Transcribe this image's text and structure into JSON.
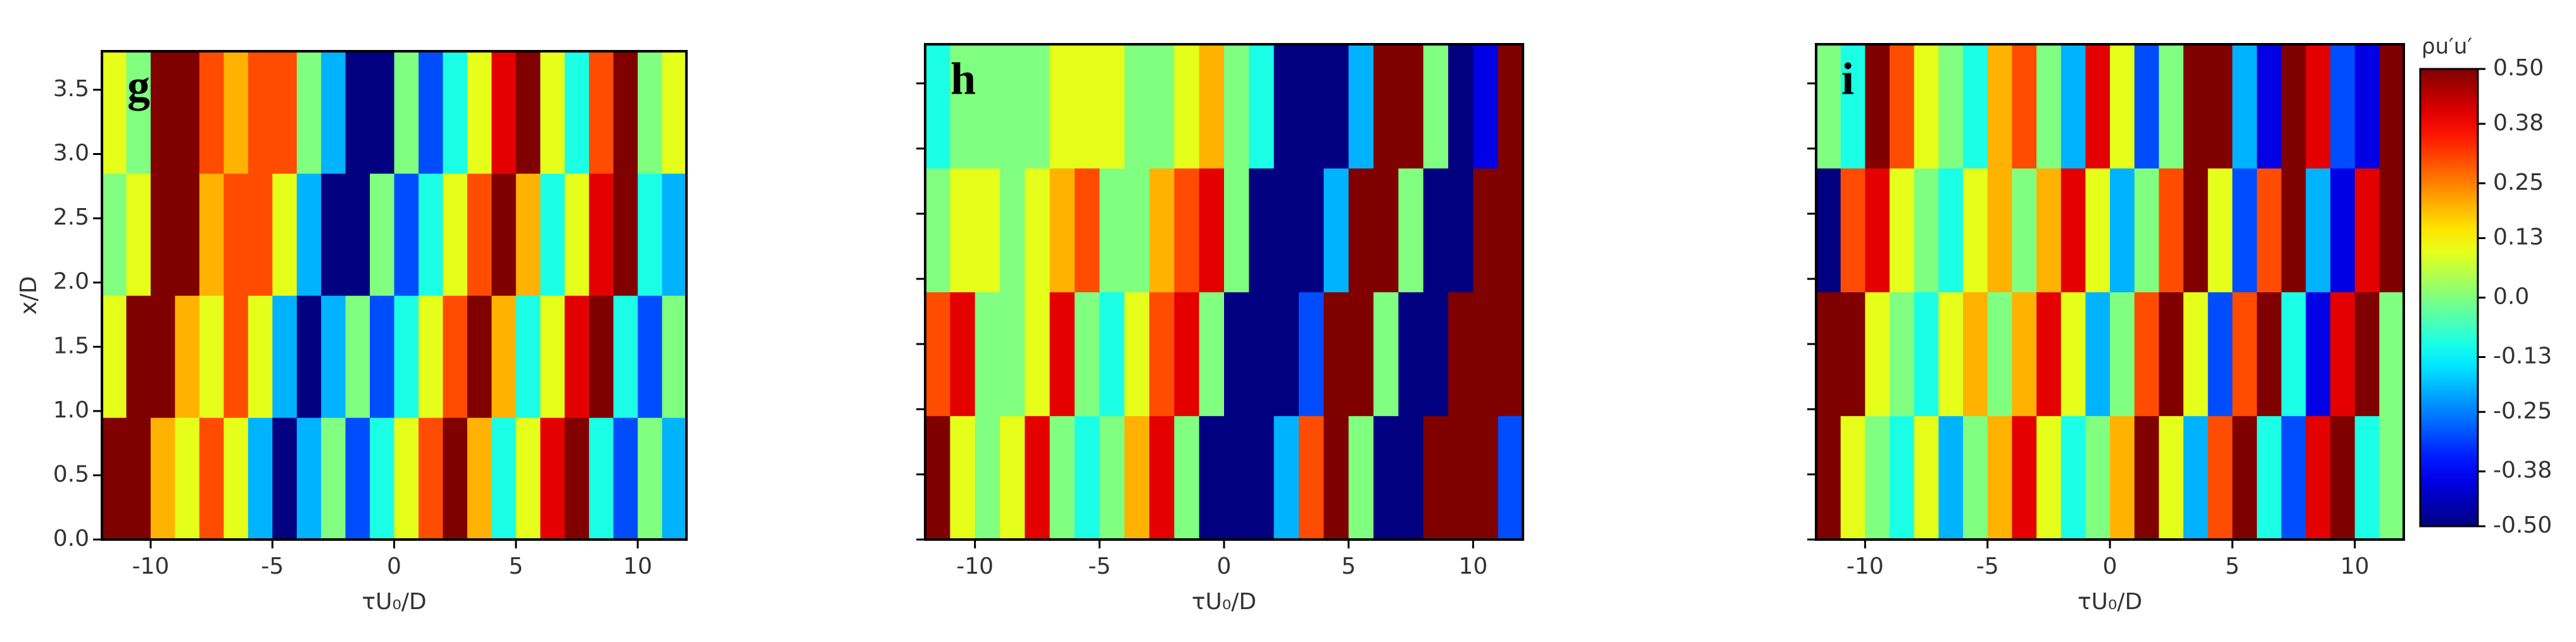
{
  "chart_data": [
    {
      "type": "heatmap",
      "panel_label": "g",
      "xlabel": "τU₀/D",
      "ylabel": "x/D",
      "x": [
        -11.5,
        -10.5,
        -9.5,
        -8.5,
        -7.5,
        -6.5,
        -5.5,
        -4.5,
        -3.5,
        -2.5,
        -1.5,
        -0.5,
        0.5,
        1.5,
        2.5,
        3.5,
        4.5,
        5.5,
        6.5,
        7.5,
        8.5,
        9.5,
        10.5,
        11.5
      ],
      "y": [
        0.475,
        1.425,
        2.375,
        3.325
      ],
      "z": [
        [
          0.5,
          0.5,
          0.2,
          0.1,
          0.3,
          0.1,
          -0.2,
          -0.5,
          -0.2,
          0.0,
          -0.3,
          -0.1,
          0.1,
          0.3,
          0.5,
          0.2,
          -0.1,
          0.1,
          0.4,
          0.5,
          -0.1,
          -0.3,
          0.0,
          -0.2
        ],
        [
          0.1,
          0.5,
          0.5,
          0.2,
          0.1,
          0.3,
          0.1,
          -0.2,
          -0.5,
          -0.2,
          0.0,
          -0.3,
          -0.1,
          0.1,
          0.3,
          0.5,
          0.2,
          -0.1,
          0.1,
          0.4,
          0.5,
          -0.1,
          -0.3,
          0.0
        ],
        [
          0.0,
          0.1,
          0.5,
          0.5,
          0.2,
          0.3,
          0.3,
          0.1,
          -0.2,
          -0.5,
          -0.5,
          0.0,
          -0.3,
          -0.1,
          0.1,
          0.3,
          0.5,
          0.2,
          -0.1,
          0.1,
          0.4,
          0.5,
          -0.1,
          -0.2
        ],
        [
          0.1,
          0.0,
          0.5,
          0.5,
          0.3,
          0.2,
          0.3,
          0.3,
          0.0,
          -0.2,
          -0.5,
          -0.5,
          0.0,
          -0.3,
          -0.1,
          0.1,
          0.4,
          0.5,
          0.1,
          -0.1,
          0.3,
          0.5,
          0.0,
          0.1
        ]
      ],
      "xlim": [
        -12,
        12
      ],
      "xticks": [
        -10,
        -5,
        0,
        5,
        10
      ],
      "ylim": [
        0,
        3.8
      ],
      "yticks": [
        {
          "value": 0,
          "label": "0.0"
        },
        0.5,
        {
          "value": 1,
          "label": "1.0"
        },
        1.5,
        {
          "value": 2,
          "label": "2.0"
        },
        2.5,
        {
          "value": 3,
          "label": "3.0"
        },
        3.5
      ],
      "show_ytick_labels": true
    },
    {
      "type": "heatmap",
      "panel_label": "h",
      "xlabel": "τU₀/D",
      "x": [
        -11.5,
        -10.5,
        -9.5,
        -8.5,
        -7.5,
        -6.5,
        -5.5,
        -4.5,
        -3.5,
        -2.5,
        -1.5,
        -0.5,
        0.5,
        1.5,
        2.5,
        3.5,
        4.5,
        5.5,
        6.5,
        7.5,
        8.5,
        9.5,
        10.5,
        11.5
      ],
      "y": [
        0.475,
        1.425,
        2.375,
        3.325
      ],
      "z": [
        [
          0.5,
          0.1,
          0.0,
          0.1,
          0.4,
          0.0,
          -0.1,
          0.0,
          0.2,
          0.4,
          0.0,
          -0.5,
          -0.5,
          -0.5,
          -0.2,
          0.3,
          0.5,
          0.0,
          -0.5,
          -0.5,
          0.5,
          0.5,
          0.5,
          -0.3
        ],
        [
          0.3,
          0.4,
          0.0,
          0.0,
          0.1,
          0.4,
          0.0,
          -0.1,
          0.1,
          0.3,
          0.4,
          0.0,
          -0.5,
          -0.5,
          -0.5,
          -0.3,
          0.5,
          0.5,
          0.0,
          -0.5,
          -0.5,
          0.5,
          0.5,
          0.5
        ],
        [
          0.0,
          0.1,
          0.1,
          0.0,
          0.1,
          0.2,
          0.3,
          0.0,
          0.0,
          0.2,
          0.3,
          0.4,
          0.0,
          -0.5,
          -0.5,
          -0.5,
          -0.2,
          0.5,
          0.5,
          0.0,
          -0.5,
          -0.5,
          0.5,
          0.5
        ],
        [
          -0.1,
          0.0,
          0.0,
          0.0,
          0.0,
          0.1,
          0.1,
          0.1,
          0.0,
          0.0,
          0.1,
          0.2,
          0.0,
          -0.1,
          -0.5,
          -0.5,
          -0.5,
          -0.2,
          0.5,
          0.5,
          0.0,
          -0.5,
          -0.4,
          0.5
        ]
      ],
      "xlim": [
        -12,
        12
      ],
      "xticks": [
        -10,
        -5,
        0,
        5,
        10
      ],
      "ylim": [
        0,
        3.8
      ],
      "yticks": [
        0,
        0.5,
        1,
        1.5,
        2,
        2.5,
        3,
        3.5
      ],
      "show_ytick_labels": false
    },
    {
      "type": "heatmap",
      "panel_label": "i",
      "xlabel": "τU₀/D",
      "x": [
        -11.5,
        -10.5,
        -9.5,
        -8.5,
        -7.5,
        -6.5,
        -5.5,
        -4.5,
        -3.5,
        -2.5,
        -1.5,
        -0.5,
        0.5,
        1.5,
        2.5,
        3.5,
        4.5,
        5.5,
        6.5,
        7.5,
        8.5,
        9.5,
        10.5,
        11.5
      ],
      "y": [
        0.475,
        1.425,
        2.375,
        3.325
      ],
      "z": [
        [
          0.5,
          0.1,
          0.0,
          -0.1,
          0.1,
          -0.2,
          0.0,
          0.2,
          0.4,
          0.1,
          -0.1,
          0.0,
          0.2,
          0.5,
          0.1,
          -0.2,
          0.3,
          0.5,
          -0.1,
          -0.3,
          0.4,
          0.5,
          -0.1,
          0.0
        ],
        [
          0.5,
          0.5,
          0.1,
          0.0,
          -0.1,
          0.1,
          0.2,
          0.0,
          0.2,
          0.4,
          0.1,
          -0.2,
          0.0,
          0.3,
          0.5,
          0.1,
          -0.3,
          0.3,
          0.5,
          -0.1,
          -0.4,
          0.4,
          0.5,
          0.0
        ],
        [
          -0.5,
          0.3,
          0.4,
          0.1,
          0.0,
          -0.1,
          0.1,
          0.2,
          0.0,
          0.2,
          0.4,
          0.1,
          -0.2,
          0.0,
          0.3,
          0.5,
          0.1,
          -0.3,
          0.3,
          0.5,
          -0.2,
          -0.4,
          0.4,
          0.5
        ],
        [
          0.0,
          -0.1,
          0.5,
          0.3,
          0.1,
          0.0,
          -0.1,
          0.2,
          0.3,
          0.0,
          -0.2,
          0.4,
          0.1,
          -0.3,
          0.0,
          0.5,
          0.5,
          -0.2,
          -0.4,
          0.5,
          0.4,
          -0.3,
          -0.4,
          0.5
        ]
      ],
      "xlim": [
        -12,
        12
      ],
      "xticks": [
        -10,
        -5,
        0,
        5,
        10
      ],
      "ylim": [
        0,
        3.8
      ],
      "yticks": [
        0,
        0.5,
        1,
        1.5,
        2,
        2.5,
        3,
        3.5
      ],
      "show_ytick_labels": false,
      "colorbar": {
        "label": "ρu′u′",
        "zlim": [
          -0.5,
          0.5
        ],
        "ticks": [
          {
            "value": 0.5,
            "label": "0.50"
          },
          0.38,
          0.25,
          0.13,
          {
            "value": 0,
            "label": "0.0"
          },
          -0.13,
          -0.25,
          -0.38,
          {
            "value": -0.5,
            "label": "-0.50"
          }
        ]
      }
    }
  ]
}
